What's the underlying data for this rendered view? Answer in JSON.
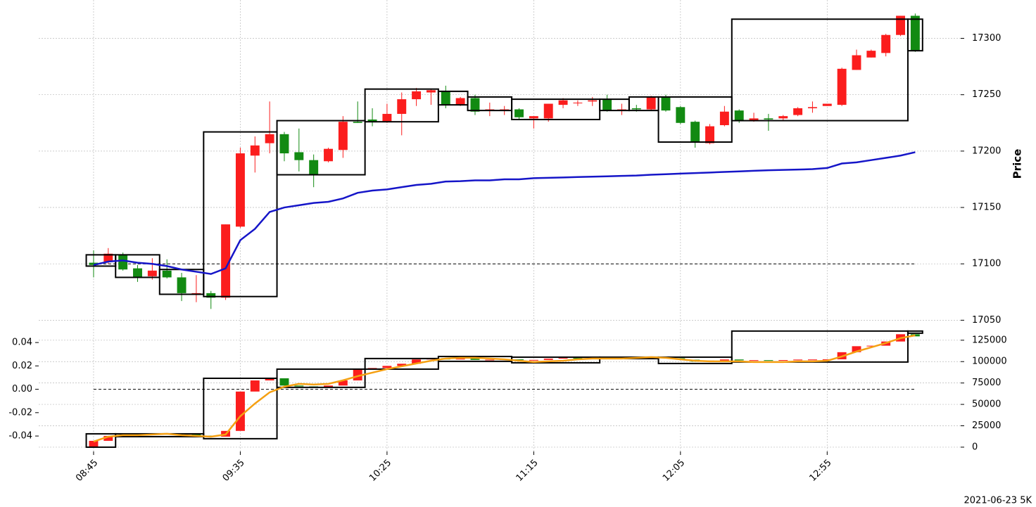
{
  "footer": "2021-06-23 5K",
  "chart_data": [
    {
      "type": "candlestick",
      "ylabel": "Price",
      "xlim": [
        -3.74,
        59.1
      ],
      "ylim": [
        17044,
        17334
      ],
      "yticks": [
        17050,
        17100,
        17150,
        17200,
        17250,
        17300
      ],
      "grid": true,
      "up_color": "#fb1d1d",
      "down_color": "#128a12",
      "x": [
        0,
        1,
        2,
        3,
        4,
        5,
        6,
        7,
        8,
        9,
        10,
        11,
        12,
        13,
        14,
        15,
        16,
        17,
        18,
        19,
        20,
        21,
        22,
        23,
        24,
        25,
        26,
        27,
        28,
        29,
        30,
        31,
        32,
        33,
        34,
        35,
        36,
        37,
        38,
        39,
        40,
        41,
        42,
        43,
        44,
        45,
        46,
        47,
        48,
        49,
        50,
        51,
        52,
        53,
        54,
        55,
        56
      ],
      "open": [
        17101,
        17102,
        17108,
        17096,
        17089,
        17094,
        17088,
        17073,
        17074,
        17070,
        17133,
        17196,
        17207,
        17215,
        17199,
        17192,
        17191,
        17201,
        17226,
        17228,
        17226,
        17233,
        17246,
        17252,
        17253,
        17241,
        17247,
        17236,
        17236,
        17237,
        17229,
        17229,
        17241,
        17243,
        17244,
        17246,
        17236,
        17238,
        17237,
        17248,
        17239,
        17226,
        17207,
        17223,
        17236,
        17227,
        17229,
        17229,
        17232,
        17238,
        17240,
        17241,
        17272,
        17283,
        17287,
        17303,
        17320
      ],
      "high": [
        17112,
        17114,
        17110,
        17099,
        17105,
        17104,
        17092,
        17090,
        17076,
        17135,
        17203,
        17213,
        17244,
        17217,
        17220,
        17197,
        17203,
        17231,
        17244,
        17238,
        17242,
        17252,
        17256,
        17255,
        17258,
        17248,
        17250,
        17243,
        17240,
        17238,
        17231,
        17242,
        17247,
        17245,
        17248,
        17250,
        17242,
        17241,
        17249,
        17250,
        17240,
        17227,
        17224,
        17240,
        17237,
        17234,
        17233,
        17232,
        17239,
        17244,
        17242,
        17274,
        17290,
        17290,
        17304,
        17320,
        17322
      ],
      "low": [
        17088,
        17100,
        17094,
        17084,
        17086,
        17087,
        17067,
        17066,
        17060,
        17068,
        17132,
        17181,
        17198,
        17191,
        17182,
        17168,
        17190,
        17194,
        17225,
        17222,
        17225,
        17214,
        17240,
        17241,
        17238,
        17240,
        17232,
        17231,
        17232,
        17228,
        17220,
        17226,
        17238,
        17240,
        17240,
        17235,
        17232,
        17235,
        17236,
        17235,
        17224,
        17203,
        17206,
        17222,
        17225,
        17226,
        17218,
        17227,
        17231,
        17234,
        17240,
        17240,
        17272,
        17283,
        17284,
        17302,
        17288
      ],
      "close": [
        17099,
        17109,
        17095,
        17088,
        17094,
        17088,
        17074,
        17074,
        17070,
        17135,
        17198,
        17205,
        17215,
        17198,
        17192,
        17179,
        17202,
        17226,
        17225,
        17226,
        17233,
        17246,
        17253,
        17254,
        17241,
        17247,
        17235,
        17237,
        17237,
        17230,
        17231,
        17242,
        17245,
        17243,
        17245,
        17236,
        17237,
        17237,
        17248,
        17236,
        17225,
        17208,
        17222,
        17235,
        17227,
        17229,
        17228,
        17231,
        17238,
        17239,
        17242,
        17273,
        17285,
        17289,
        17303,
        17320,
        17289
      ],
      "line": {
        "color": "#1515c8",
        "values": [
          17099,
          17102,
          17103,
          17101,
          17100,
          17098,
          17095,
          17093,
          17091,
          17096,
          17121,
          17131,
          17146,
          17150,
          17152,
          17154,
          17155,
          17158,
          17163,
          17165,
          17166,
          17168,
          17170,
          17171,
          17173,
          17173.3,
          17174,
          17174,
          17175,
          17175,
          17176,
          17176.3,
          17176.6,
          17177,
          17177.3,
          17177.6,
          17178,
          17178.3,
          17179,
          17179.5,
          17180,
          17180.5,
          17181,
          17181.5,
          17182,
          17182.5,
          17183,
          17183.3,
          17183.6,
          17184,
          17185,
          17189,
          17190,
          17192,
          17194,
          17196,
          17199
        ]
      },
      "hline": 17100,
      "boxes": [
        {
          "x": [
            -0.5,
            1.5
          ],
          "y": [
            17098,
            17108
          ]
        },
        {
          "x": [
            1.5,
            4.5
          ],
          "y": [
            17088,
            17108
          ]
        },
        {
          "x": [
            4.5,
            7.5
          ],
          "y": [
            17073,
            17095
          ]
        },
        {
          "x": [
            7.5,
            12.5
          ],
          "y": [
            17071,
            17217
          ]
        },
        {
          "x": [
            12.5,
            18.5
          ],
          "y": [
            17179,
            17227
          ]
        },
        {
          "x": [
            18.5,
            23.5
          ],
          "y": [
            17226,
            17255
          ]
        },
        {
          "x": [
            23.5,
            25.5
          ],
          "y": [
            17241,
            17253
          ]
        },
        {
          "x": [
            25.5,
            28.5
          ],
          "y": [
            17236,
            17248
          ]
        },
        {
          "x": [
            28.5,
            34.5
          ],
          "y": [
            17228,
            17246
          ]
        },
        {
          "x": [
            34.5,
            36.5
          ],
          "y": [
            17236,
            17246
          ]
        },
        {
          "x": [
            36.5,
            38.5
          ],
          "y": [
            17236,
            17248
          ]
        },
        {
          "x": [
            38.5,
            43.5
          ],
          "y": [
            17208,
            17248
          ]
        },
        {
          "x": [
            43.5,
            55.5
          ],
          "y": [
            17227,
            17317
          ]
        },
        {
          "x": [
            55.5,
            56.5
          ],
          "y": [
            17289,
            17317
          ]
        }
      ]
    },
    {
      "type": "candlestick",
      "xlim": [
        -3.74,
        59.1
      ],
      "ylim": [
        -5000,
        138000
      ],
      "yticks": [
        0,
        25000,
        50000,
        75000,
        100000,
        125000
      ],
      "y2lim": [
        -0.0532,
        0.0515
      ],
      "y2ticks": [
        -0.04,
        -0.02,
        {
          "value": 0,
          "label": "0.00"
        },
        0.02,
        0.04
      ],
      "hline_y2": 0,
      "xticks": [
        {
          "value": 0,
          "label": "08:45"
        },
        {
          "value": 10,
          "label": "09:35"
        },
        {
          "value": 20,
          "label": "10:25"
        },
        {
          "value": 30,
          "label": "11:15"
        },
        {
          "value": 40,
          "label": "12:05"
        },
        {
          "value": 50,
          "label": "12:55"
        }
      ],
      "grid": true,
      "up_color": "#fb1d1d",
      "down_color": "#128a12",
      "x": [
        0,
        1,
        2,
        3,
        4,
        5,
        6,
        7,
        8,
        9,
        10,
        11,
        12,
        13,
        14,
        15,
        16,
        17,
        18,
        19,
        20,
        21,
        22,
        23,
        24,
        25,
        26,
        27,
        28,
        29,
        30,
        31,
        32,
        33,
        34,
        35,
        36,
        37,
        38,
        39,
        40,
        41,
        42,
        43,
        44,
        45,
        46,
        47,
        48,
        49,
        50,
        51,
        52,
        53,
        54,
        55,
        56
      ],
      "open": [
        0,
        7400,
        13200,
        14000,
        14800,
        15200,
        15600,
        15000,
        13500,
        12300,
        19000,
        65000,
        78000,
        80500,
        72000,
        71000,
        70000,
        72000,
        78000,
        91000,
        92500,
        95000,
        97500,
        102500,
        104000,
        102500,
        103500,
        102000,
        102300,
        102600,
        101800,
        102000,
        103500,
        104300,
        104300,
        104600,
        103800,
        104000,
        103900,
        105000,
        104000,
        102200,
        100000,
        101200,
        102500,
        101500,
        101700,
        101500,
        101800,
        102400,
        102500,
        102700,
        111000,
        118000,
        118600,
        123500,
        132000
      ],
      "close": [
        7400,
        13200,
        14000,
        14800,
        15200,
        15600,
        15000,
        13500,
        12300,
        19000,
        65000,
        78000,
        80500,
        72000,
        71000,
        70000,
        72000,
        78000,
        91000,
        92500,
        95000,
        97500,
        102500,
        104000,
        102500,
        103500,
        102000,
        102300,
        102600,
        101800,
        102000,
        103500,
        104300,
        104200,
        104600,
        103800,
        104000,
        103900,
        105000,
        104000,
        102200,
        100000,
        101200,
        102500,
        101500,
        101700,
        101500,
        101800,
        102400,
        102500,
        102700,
        111000,
        118000,
        118600,
        123500,
        132000,
        129500
      ],
      "line": {
        "color": "#f5a012",
        "values": [
          6600,
          12300,
          14000,
          14000,
          14800,
          15600,
          14000,
          13200,
          12300,
          14800,
          36200,
          51000,
          64100,
          70700,
          74000,
          73200,
          74000,
          78100,
          83000,
          87100,
          91200,
          94500,
          97800,
          101000,
          103600,
          104400,
          104400,
          103600,
          102700,
          101000,
          99500,
          100300,
          101000,
          102700,
          103600,
          103600,
          103600,
          104400,
          105200,
          104400,
          102700,
          101000,
          100300,
          100300,
          100300,
          99500,
          99500,
          99500,
          100300,
          100300,
          101000,
          106000,
          111800,
          116700,
          121700,
          127400,
          130700
        ]
      },
      "boxes": [
        {
          "x": [
            -0.5,
            1.5
          ],
          "y": [
            0,
            15600
          ]
        },
        {
          "x": [
            1.5,
            7.5
          ],
          "y": [
            12300,
            15600
          ]
        },
        {
          "x": [
            7.5,
            12.5
          ],
          "y": [
            9900,
            80500
          ]
        },
        {
          "x": [
            12.5,
            18.5
          ],
          "y": [
            69900,
            91200
          ]
        },
        {
          "x": [
            18.5,
            23.5
          ],
          "y": [
            91200,
            103600
          ]
        },
        {
          "x": [
            23.5,
            28.5
          ],
          "y": [
            100300,
            106000
          ]
        },
        {
          "x": [
            28.5,
            34.5
          ],
          "y": [
            98600,
            105200
          ]
        },
        {
          "x": [
            34.5,
            38.5
          ],
          "y": [
            103500,
            105200
          ]
        },
        {
          "x": [
            38.5,
            43.5
          ],
          "y": [
            97800,
            105200
          ]
        },
        {
          "x": [
            43.5,
            55.5
          ],
          "y": [
            99500,
            135700
          ]
        },
        {
          "x": [
            55.5,
            56.5
          ],
          "y": [
            133200,
            135700
          ]
        }
      ]
    }
  ]
}
